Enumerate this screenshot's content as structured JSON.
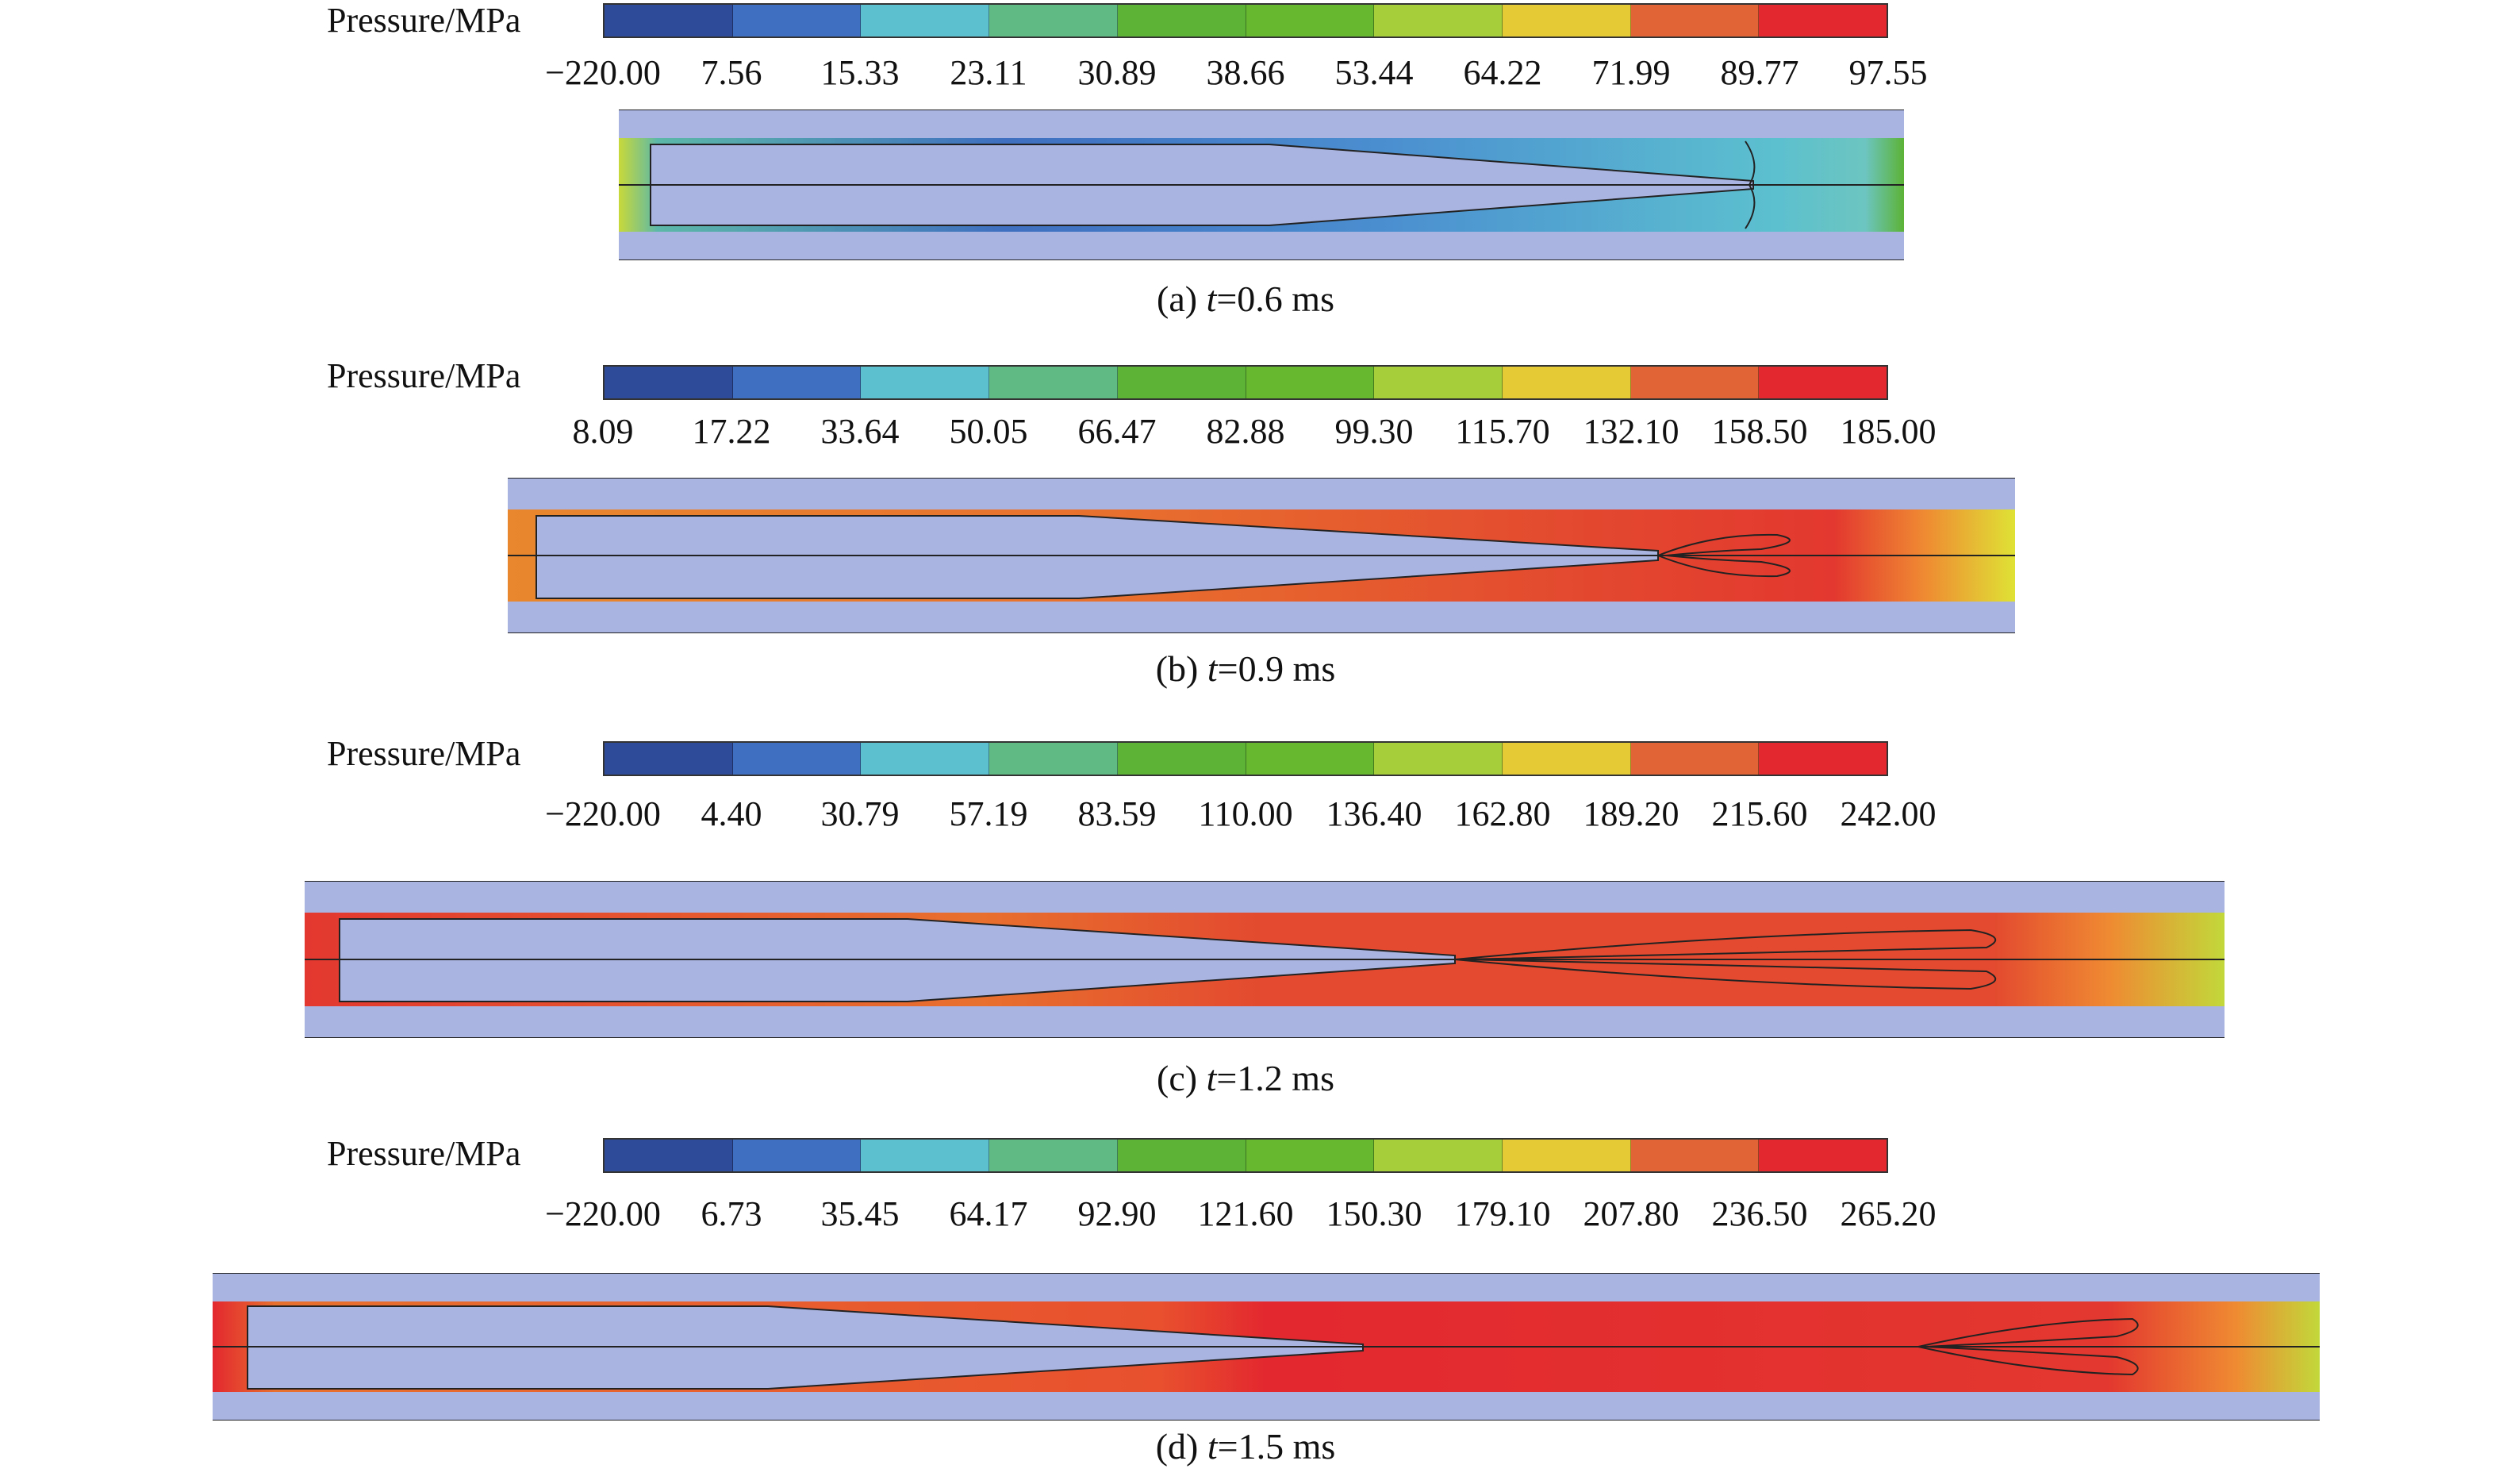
{
  "colormap": [
    "#2e4b9a",
    "#3f6fc0",
    "#5cc0cf",
    "#5fba84",
    "#5cb336",
    "#67b82f",
    "#a6ce3a",
    "#e5ca35",
    "#e06436",
    "#e3282f"
  ],
  "panels": [
    {
      "id": "a",
      "legend_title": "Pressure/MPa",
      "ticks": [
        "−220.00",
        "7.56",
        "15.33",
        "23.11",
        "30.89",
        "38.66",
        "53.44",
        "64.22",
        "71.99",
        "89.77",
        "97.55"
      ],
      "caption_prefix": "(a) ",
      "caption_var": "t",
      "caption_value": "=0.6 ms"
    },
    {
      "id": "b",
      "legend_title": "Pressure/MPa",
      "ticks": [
        "8.09",
        "17.22",
        "33.64",
        "50.05",
        "66.47",
        "82.88",
        "99.30",
        "115.70",
        "132.10",
        "158.50",
        "185.00"
      ],
      "caption_prefix": "(b) ",
      "caption_var": "t",
      "caption_value": "=0.9 ms"
    },
    {
      "id": "c",
      "legend_title": "Pressure/MPa",
      "ticks": [
        "−220.00",
        "4.40",
        "30.79",
        "57.19",
        "83.59",
        "110.00",
        "136.40",
        "162.80",
        "189.20",
        "215.60",
        "242.00"
      ],
      "caption_prefix": "(c) ",
      "caption_var": "t",
      "caption_value": "=1.2 ms"
    },
    {
      "id": "d",
      "legend_title": "Pressure/MPa",
      "ticks": [
        "−220.00",
        "6.73",
        "35.45",
        "64.17",
        "92.90",
        "121.60",
        "150.30",
        "179.10",
        "207.80",
        "236.50",
        "265.20"
      ],
      "caption_prefix": "(d) ",
      "caption_var": "t",
      "caption_value": "=1.5 ms"
    }
  ]
}
